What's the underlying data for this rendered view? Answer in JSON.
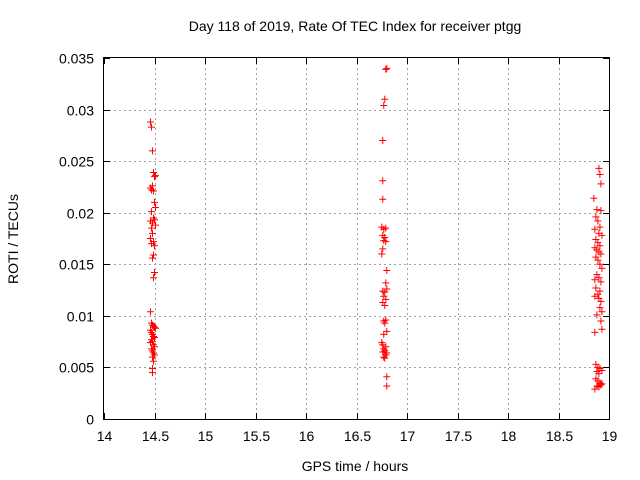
{
  "chart_data": {
    "type": "scatter",
    "title": "Day 118 of 2019, Rate Of TEC Index for receiver ptgg",
    "xlabel": "GPS time / hours",
    "ylabel": "ROTI / TECUs",
    "xlim": [
      14,
      19
    ],
    "ylim": [
      0,
      0.035
    ],
    "grid": true,
    "marker": "+",
    "color": "#ff0000",
    "x_tick_labels": [
      "14",
      "14.5",
      "15",
      "15.5",
      "16",
      "16.5",
      "17",
      "17.5",
      "18",
      "18.5",
      "19"
    ],
    "y_tick_labels": [
      "0",
      "0.005",
      "0.01",
      "0.015",
      "0.02",
      "0.025",
      "0.03",
      "0.035"
    ],
    "x_ticks": [
      14,
      14.5,
      15,
      15.5,
      16,
      16.5,
      17,
      17.5,
      18,
      18.5,
      19
    ],
    "y_ticks": [
      0,
      0.005,
      0.01,
      0.015,
      0.02,
      0.025,
      0.03,
      0.035
    ],
    "series": [
      {
        "name": "ROTI",
        "points": [
          [
            14.46,
            0.0288
          ],
          [
            14.47,
            0.0283
          ],
          [
            14.48,
            0.026
          ],
          [
            14.49,
            0.0239
          ],
          [
            14.5,
            0.0235
          ],
          [
            14.51,
            0.0236
          ],
          [
            14.46,
            0.0224
          ],
          [
            14.47,
            0.0222
          ],
          [
            14.48,
            0.0226
          ],
          [
            14.49,
            0.0221
          ],
          [
            14.5,
            0.021
          ],
          [
            14.51,
            0.0205
          ],
          [
            14.47,
            0.0201
          ],
          [
            14.49,
            0.0195
          ],
          [
            14.46,
            0.0192
          ],
          [
            14.48,
            0.019
          ],
          [
            14.5,
            0.0193
          ],
          [
            14.51,
            0.0188
          ],
          [
            14.47,
            0.0185
          ],
          [
            14.48,
            0.018
          ],
          [
            14.46,
            0.0175
          ],
          [
            14.49,
            0.0172
          ],
          [
            14.47,
            0.017
          ],
          [
            14.5,
            0.0168
          ],
          [
            14.49,
            0.0159
          ],
          [
            14.48,
            0.0156
          ],
          [
            14.5,
            0.0142
          ],
          [
            14.49,
            0.0137
          ],
          [
            14.46,
            0.0104
          ],
          [
            14.47,
            0.0093
          ],
          [
            14.48,
            0.0091
          ],
          [
            14.49,
            0.009
          ],
          [
            14.5,
            0.0089
          ],
          [
            14.51,
            0.0088
          ],
          [
            14.46,
            0.0086
          ],
          [
            14.47,
            0.0084
          ],
          [
            14.48,
            0.0082
          ],
          [
            14.49,
            0.008
          ],
          [
            14.5,
            0.0079
          ],
          [
            14.47,
            0.0077
          ],
          [
            14.48,
            0.0075
          ],
          [
            14.46,
            0.0074
          ],
          [
            14.49,
            0.0072
          ],
          [
            14.5,
            0.007
          ],
          [
            14.47,
            0.0068
          ],
          [
            14.48,
            0.0066
          ],
          [
            14.49,
            0.0064
          ],
          [
            14.5,
            0.0062
          ],
          [
            14.48,
            0.006
          ],
          [
            14.49,
            0.0056
          ],
          [
            14.48,
            0.0049
          ],
          [
            14.48,
            0.0045
          ],
          [
            16.79,
            0.0339
          ],
          [
            16.8,
            0.034
          ],
          [
            16.78,
            0.031
          ],
          [
            16.77,
            0.0304
          ],
          [
            16.76,
            0.027
          ],
          [
            16.76,
            0.0231
          ],
          [
            16.76,
            0.0213
          ],
          [
            16.75,
            0.0186
          ],
          [
            16.77,
            0.0184
          ],
          [
            16.79,
            0.0185
          ],
          [
            16.76,
            0.0178
          ],
          [
            16.78,
            0.0176
          ],
          [
            16.77,
            0.0173
          ],
          [
            16.79,
            0.0172
          ],
          [
            16.76,
            0.0165
          ],
          [
            16.75,
            0.016
          ],
          [
            16.8,
            0.0144
          ],
          [
            16.79,
            0.0132
          ],
          [
            16.76,
            0.0124
          ],
          [
            16.78,
            0.0123
          ],
          [
            16.8,
            0.0126
          ],
          [
            16.77,
            0.0119
          ],
          [
            16.79,
            0.0116
          ],
          [
            16.76,
            0.0113
          ],
          [
            16.78,
            0.011
          ],
          [
            16.79,
            0.0096
          ],
          [
            16.77,
            0.0095
          ],
          [
            16.78,
            0.0093
          ],
          [
            16.8,
            0.0085
          ],
          [
            16.77,
            0.0082
          ],
          [
            16.75,
            0.0074
          ],
          [
            16.76,
            0.0072
          ],
          [
            16.79,
            0.007
          ],
          [
            16.77,
            0.0068
          ],
          [
            16.78,
            0.0066
          ],
          [
            16.76,
            0.0065
          ],
          [
            16.8,
            0.0064
          ],
          [
            16.79,
            0.0062
          ],
          [
            16.77,
            0.006
          ],
          [
            16.78,
            0.0059
          ],
          [
            16.8,
            0.0041
          ],
          [
            16.8,
            0.0032
          ],
          [
            18.9,
            0.0243
          ],
          [
            18.91,
            0.0237
          ],
          [
            18.92,
            0.0228
          ],
          [
            18.85,
            0.0214
          ],
          [
            18.88,
            0.0203
          ],
          [
            18.92,
            0.0202
          ],
          [
            18.87,
            0.0196
          ],
          [
            18.89,
            0.0192
          ],
          [
            18.91,
            0.0186
          ],
          [
            18.86,
            0.0184
          ],
          [
            18.9,
            0.018
          ],
          [
            18.93,
            0.0178
          ],
          [
            18.87,
            0.0174
          ],
          [
            18.89,
            0.0171
          ],
          [
            18.91,
            0.0168
          ],
          [
            18.86,
            0.0166
          ],
          [
            18.88,
            0.0164
          ],
          [
            18.9,
            0.0162
          ],
          [
            18.92,
            0.016
          ],
          [
            18.87,
            0.0157
          ],
          [
            18.89,
            0.0154
          ],
          [
            18.91,
            0.015
          ],
          [
            18.93,
            0.0146
          ],
          [
            18.88,
            0.014
          ],
          [
            18.9,
            0.0137
          ],
          [
            18.86,
            0.0135
          ],
          [
            18.92,
            0.0133
          ],
          [
            18.87,
            0.0127
          ],
          [
            18.91,
            0.0124
          ],
          [
            18.89,
            0.0121
          ],
          [
            18.86,
            0.0119
          ],
          [
            18.9,
            0.0117
          ],
          [
            18.92,
            0.0114
          ],
          [
            18.91,
            0.0108
          ],
          [
            18.93,
            0.0104
          ],
          [
            18.88,
            0.0101
          ],
          [
            18.92,
            0.0095
          ],
          [
            18.93,
            0.0087
          ],
          [
            18.86,
            0.0084
          ],
          [
            18.87,
            0.0053
          ],
          [
            18.89,
            0.005
          ],
          [
            18.91,
            0.0049
          ],
          [
            18.93,
            0.0047
          ],
          [
            18.88,
            0.0046
          ],
          [
            18.9,
            0.0044
          ],
          [
            18.87,
            0.0039
          ],
          [
            18.89,
            0.0037
          ],
          [
            18.91,
            0.0035
          ],
          [
            18.93,
            0.0034
          ],
          [
            18.88,
            0.0032
          ],
          [
            18.9,
            0.0031
          ],
          [
            18.86,
            0.0029
          ],
          [
            18.92,
            0.0033
          ]
        ]
      }
    ]
  }
}
